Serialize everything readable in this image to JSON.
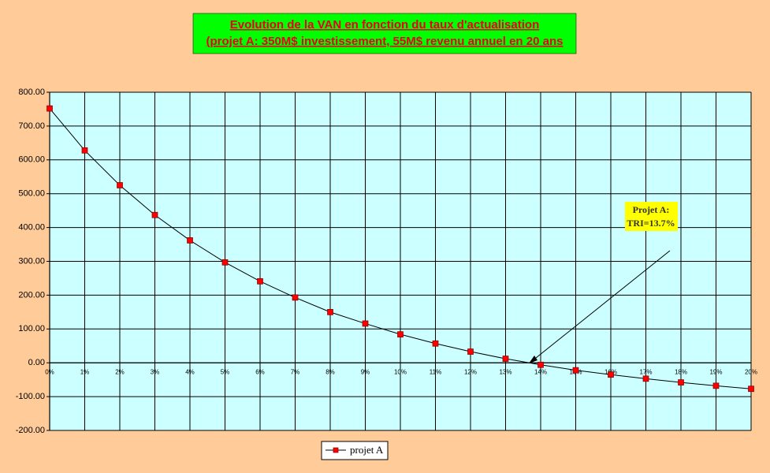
{
  "chart_data": {
    "type": "line",
    "title": [
      "Evolution de la VAN en fonction du taux d'actualisation",
      "(projet A: 350M$ investissement, 55M$ revenu annuel en 20 ans"
    ],
    "categories": [
      "0%",
      "1%",
      "2%",
      "3%",
      "4%",
      "5%",
      "6%",
      "7%",
      "8%",
      "9%",
      "10%",
      "11%",
      "12%",
      "13%",
      "14%",
      "15%",
      "16%",
      "17%",
      "18%",
      "19%",
      "20%"
    ],
    "series": [
      {
        "name": "projet A",
        "color": "#000000",
        "marker_color": "#ff0000",
        "values": [
          752,
          628,
          525,
          437,
          362,
          297,
          241,
          193,
          150,
          116,
          84,
          57,
          33,
          12,
          -6,
          -22,
          -35,
          -47,
          -58,
          -68,
          -77
        ]
      }
    ],
    "ylim": [
      -200,
      800
    ],
    "yticks": [
      {
        "value": -200,
        "label": "-200.00"
      },
      {
        "value": -100,
        "label": "-100.00"
      },
      {
        "value": 0,
        "label": "0.00"
      },
      {
        "value": 100,
        "label": "100.00"
      },
      {
        "value": 200,
        "label": "200.00"
      },
      {
        "value": 300,
        "label": "300.00"
      },
      {
        "value": 400,
        "label": "400.00"
      },
      {
        "value": 500,
        "label": "500.00"
      },
      {
        "value": 600,
        "label": "600.00"
      },
      {
        "value": 700,
        "label": "700.00"
      },
      {
        "value": 800,
        "label": "800.00"
      }
    ],
    "grid": true,
    "annotation": [
      "Projet A:",
      "TRI=13.7%"
    ]
  }
}
